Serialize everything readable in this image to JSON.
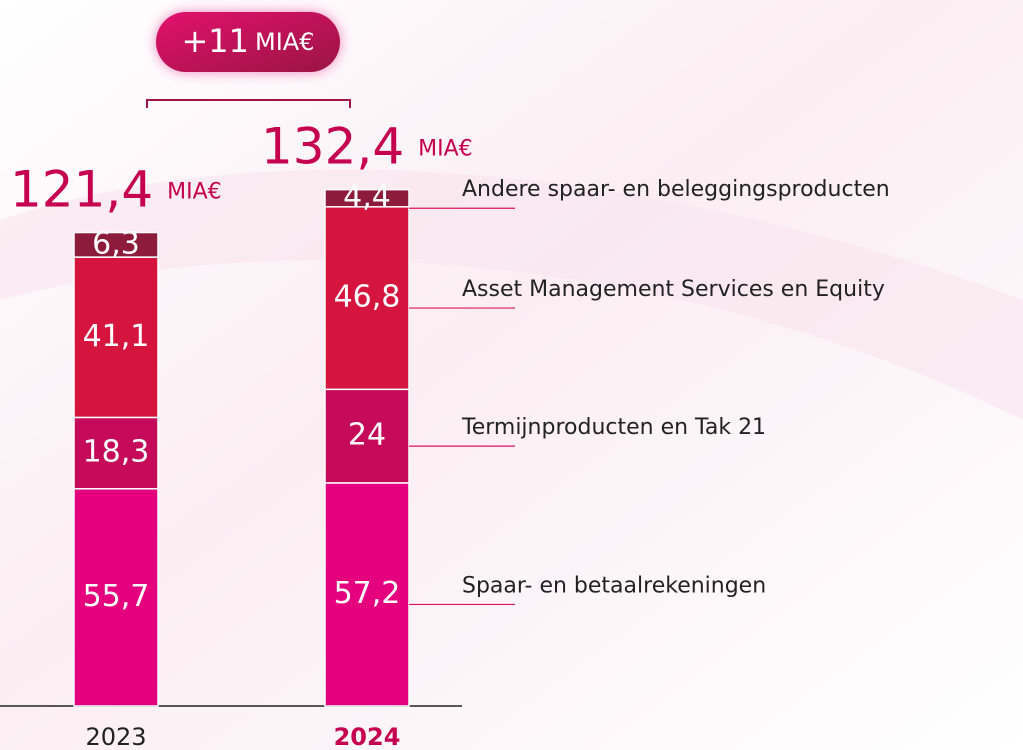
{
  "chart_data": {
    "type": "stacked_bar",
    "categories": [
      "2023",
      "2024"
    ],
    "series": [
      {
        "name": "Spaar- en betaalrekeningen",
        "color": "#e5007d",
        "values": [
          55.7,
          57.2
        ],
        "value_labels": [
          "55,7",
          "57,2"
        ]
      },
      {
        "name": "Termijnproducten en Tak 21",
        "color": "#c50a5a",
        "values": [
          18.3,
          24
        ],
        "value_labels": [
          "18,3",
          "24"
        ]
      },
      {
        "name": "Asset Management Services en Equity",
        "color": "#d6153f",
        "values": [
          41.1,
          46.8
        ],
        "value_labels": [
          "41,1",
          "46,8"
        ]
      },
      {
        "name": "Andere spaar- en beleggingsproducten",
        "color": "#8c1b3c",
        "values": [
          6.3,
          4.4
        ],
        "value_labels": [
          "6,3",
          "4,4"
        ]
      }
    ],
    "totals": {
      "values": [
        121.4,
        132.4
      ],
      "value_labels": [
        "121,4",
        "132,4"
      ],
      "unit": "MIA€"
    },
    "difference": {
      "value": 11,
      "label": "+11",
      "unit": "MIA€"
    },
    "ylim": [
      0,
      140
    ]
  }
}
